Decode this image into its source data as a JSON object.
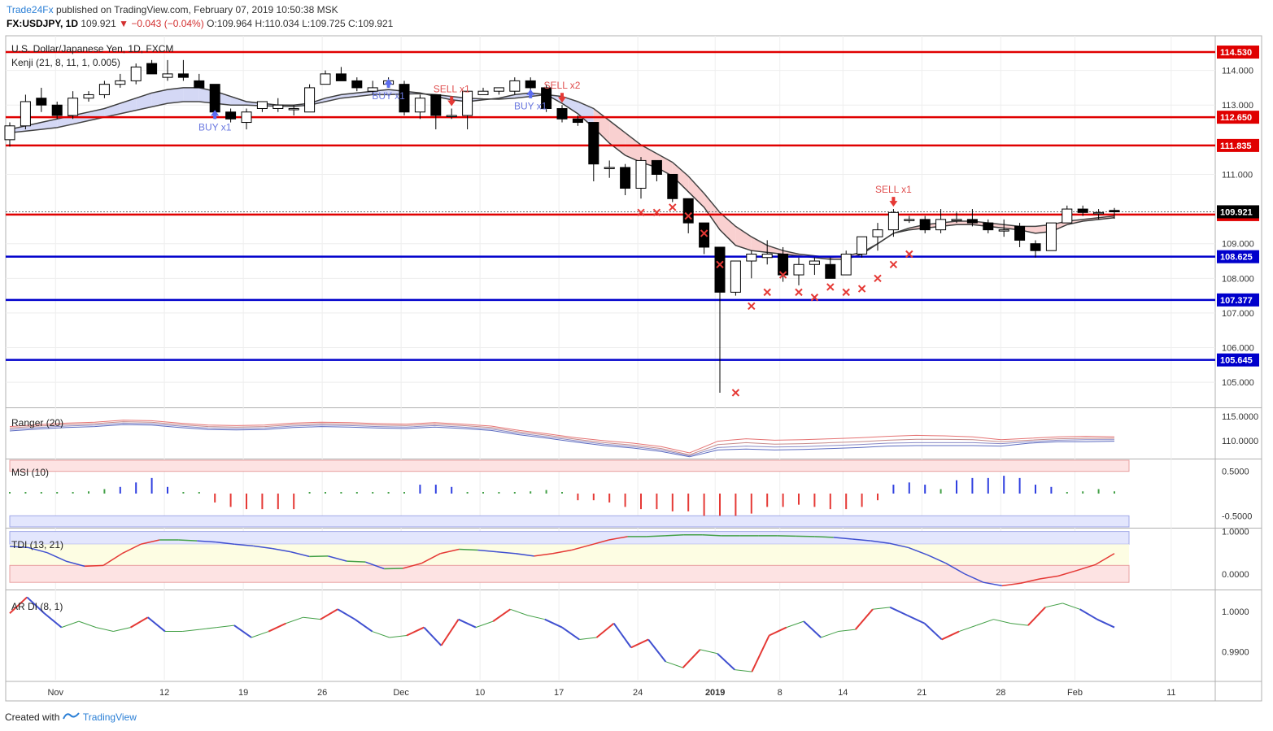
{
  "header": {
    "brand": "Trade24Fx",
    "published": "published on TradingView.com, February 07, 2019 10:50:38 MSK",
    "symbol": "FX:USDJPY, 1D",
    "last": "109.921",
    "change": "▼ −0.043 (−0.04%)",
    "ohlc": "O:109.964 H:110.034 L:109.725 C:109.921"
  },
  "footer": {
    "created_with": "Created with",
    "logo_text": "TradingView"
  },
  "colors": {
    "red_level": "#e00000",
    "blue_level": "#0000cc",
    "bull": "#ffffff",
    "bear": "#000000",
    "kenji_up": "#2e7d32",
    "kenji_dn": "#333333",
    "cloud_up": "#cfe8cf",
    "cloud_dn": "#f9d0d0",
    "cloud_blue": "#d4d8f5"
  },
  "chart_data": [
    {
      "type": "candlestick",
      "title": "U.S. Dollar/Japanese Yen, 1D, FXCM",
      "indicator": "Kenji (21, 8, 11, 1, 0.005)",
      "x_ticks": [
        "Nov",
        "12",
        "19",
        "26",
        "Dec",
        "10",
        "17",
        "24",
        "2019",
        "8",
        "14",
        "21",
        "28",
        "Feb",
        "11"
      ],
      "y_ticks": [
        "114.000",
        "113.000",
        "111.000",
        "109.000",
        "108.000",
        "107.000",
        "106.000",
        "105.000"
      ],
      "ylim": [
        104.3,
        115.0
      ],
      "levels": [
        {
          "value": 114.53,
          "label": "114.530",
          "kind": "resistance"
        },
        {
          "value": 112.65,
          "label": "112.650",
          "kind": "resistance"
        },
        {
          "value": 111.835,
          "label": "111.835",
          "kind": "resistance"
        },
        {
          "value": 109.84,
          "label": "109.840",
          "kind": "resistance"
        },
        {
          "value": 108.625,
          "label": "108.625",
          "kind": "support"
        },
        {
          "value": 107.377,
          "label": "107.377",
          "kind": "support"
        },
        {
          "value": 105.645,
          "label": "105.645",
          "kind": "support"
        }
      ],
      "last_price": {
        "value": 109.921,
        "label": "109.921"
      },
      "candles": [
        [
          112.0,
          112.5,
          111.8,
          112.4
        ],
        [
          112.4,
          113.3,
          112.3,
          113.1
        ],
        [
          113.2,
          113.5,
          112.8,
          113.0
        ],
        [
          113.0,
          113.1,
          112.6,
          112.7
        ],
        [
          112.7,
          113.4,
          112.6,
          113.2
        ],
        [
          113.2,
          113.4,
          113.1,
          113.3
        ],
        [
          113.3,
          113.7,
          113.2,
          113.6
        ],
        [
          113.6,
          113.9,
          113.5,
          113.7
        ],
        [
          113.7,
          114.2,
          113.6,
          114.1
        ],
        [
          114.2,
          114.3,
          113.9,
          113.9
        ],
        [
          113.8,
          114.3,
          113.7,
          113.9
        ],
        [
          113.9,
          114.3,
          113.7,
          113.8
        ],
        [
          113.7,
          113.9,
          113.5,
          113.5
        ],
        [
          113.6,
          113.6,
          112.6,
          112.8
        ],
        [
          112.8,
          112.9,
          112.5,
          112.6
        ],
        [
          112.5,
          112.9,
          112.3,
          112.8
        ],
        [
          112.9,
          113.1,
          112.8,
          113.1
        ],
        [
          112.9,
          113.2,
          112.8,
          113.0
        ],
        [
          112.9,
          113.0,
          112.7,
          112.9
        ],
        [
          112.8,
          113.6,
          112.8,
          113.5
        ],
        [
          113.6,
          114.0,
          113.6,
          113.9
        ],
        [
          113.9,
          114.1,
          113.7,
          113.7
        ],
        [
          113.7,
          113.8,
          113.4,
          113.5
        ],
        [
          113.4,
          113.7,
          113.3,
          113.5
        ],
        [
          113.6,
          113.8,
          113.5,
          113.7
        ],
        [
          113.6,
          113.7,
          112.7,
          112.8
        ],
        [
          112.8,
          113.3,
          112.6,
          113.2
        ],
        [
          113.3,
          113.3,
          112.3,
          112.7
        ],
        [
          112.7,
          112.9,
          112.6,
          112.7
        ],
        [
          112.7,
          113.4,
          112.3,
          113.4
        ],
        [
          113.3,
          113.5,
          113.3,
          113.4
        ],
        [
          113.4,
          113.5,
          113.3,
          113.5
        ],
        [
          113.4,
          113.8,
          113.3,
          113.7
        ],
        [
          113.7,
          113.8,
          113.2,
          113.5
        ],
        [
          113.5,
          113.6,
          112.8,
          112.9
        ],
        [
          112.9,
          113.0,
          112.5,
          112.6
        ],
        [
          112.6,
          112.7,
          112.4,
          112.5
        ],
        [
          112.5,
          112.5,
          110.8,
          111.3
        ],
        [
          111.2,
          111.4,
          110.9,
          111.2
        ],
        [
          111.2,
          111.3,
          110.4,
          110.6
        ],
        [
          110.6,
          111.5,
          110.3,
          111.4
        ],
        [
          111.4,
          111.4,
          110.8,
          111.0
        ],
        [
          111.0,
          111.0,
          110.2,
          110.3
        ],
        [
          110.3,
          110.3,
          109.3,
          109.6
        ],
        [
          109.6,
          109.6,
          108.7,
          108.9
        ],
        [
          108.9,
          108.9,
          104.7,
          107.6
        ],
        [
          107.6,
          108.5,
          107.5,
          108.5
        ],
        [
          108.5,
          108.8,
          108.0,
          108.7
        ],
        [
          108.6,
          109.1,
          108.4,
          108.7
        ],
        [
          108.7,
          108.9,
          107.9,
          108.1
        ],
        [
          108.1,
          108.6,
          107.8,
          108.4
        ],
        [
          108.4,
          108.6,
          108.1,
          108.5
        ],
        [
          108.4,
          108.6,
          108.0,
          108.0
        ],
        [
          108.1,
          108.8,
          108.1,
          108.7
        ],
        [
          108.7,
          109.2,
          108.6,
          109.2
        ],
        [
          109.2,
          109.6,
          108.8,
          109.4
        ],
        [
          109.4,
          110.0,
          109.2,
          109.9
        ],
        [
          109.7,
          109.8,
          109.6,
          109.7
        ],
        [
          109.7,
          109.8,
          109.3,
          109.4
        ],
        [
          109.4,
          110.0,
          109.3,
          109.7
        ],
        [
          109.7,
          109.9,
          109.6,
          109.7
        ],
        [
          109.7,
          110.0,
          109.5,
          109.6
        ],
        [
          109.6,
          109.7,
          109.3,
          109.4
        ],
        [
          109.4,
          109.7,
          109.2,
          109.4
        ],
        [
          109.5,
          109.6,
          108.9,
          109.1
        ],
        [
          109.0,
          109.1,
          108.6,
          108.8
        ],
        [
          108.8,
          109.6,
          108.8,
          109.6
        ],
        [
          109.6,
          110.1,
          109.6,
          110.0
        ],
        [
          110.0,
          110.1,
          109.8,
          109.9
        ],
        [
          109.9,
          110.0,
          109.7,
          109.9
        ],
        [
          109.96,
          110.03,
          109.72,
          109.92
        ]
      ],
      "kenji_fast": [
        112.3,
        112.4,
        112.5,
        112.6,
        112.7,
        112.8,
        112.9,
        113.05,
        113.2,
        113.35,
        113.45,
        113.5,
        113.5,
        113.4,
        113.25,
        113.1,
        113.05,
        113.0,
        113.0,
        113.05,
        113.2,
        113.3,
        113.35,
        113.4,
        113.45,
        113.4,
        113.35,
        113.25,
        113.15,
        113.1,
        113.15,
        113.2,
        113.3,
        113.35,
        113.3,
        113.05,
        112.75,
        112.35,
        111.9,
        111.55,
        111.35,
        111.2,
        110.95,
        110.5,
        110.05,
        109.4,
        108.95,
        108.8,
        108.75,
        108.7,
        108.65,
        108.6,
        108.55,
        108.55,
        108.7,
        109.0,
        109.3,
        109.4,
        109.45,
        109.5,
        109.55,
        109.55,
        109.5,
        109.45,
        109.4,
        109.3,
        109.35,
        109.55,
        109.65,
        109.7,
        109.75
      ],
      "kenji_slow": [
        112.2,
        112.25,
        112.3,
        112.35,
        112.45,
        112.55,
        112.65,
        112.75,
        112.85,
        112.95,
        113.05,
        113.1,
        113.1,
        113.05,
        113.0,
        113.0,
        112.98,
        112.97,
        112.96,
        113.0,
        113.1,
        113.2,
        113.25,
        113.3,
        113.3,
        113.32,
        113.33,
        113.3,
        113.25,
        113.2,
        113.18,
        113.17,
        113.2,
        113.25,
        113.3,
        113.25,
        113.1,
        112.9,
        112.55,
        112.2,
        111.85,
        111.6,
        111.35,
        110.95,
        110.45,
        109.9,
        109.5,
        109.2,
        108.95,
        108.8,
        108.7,
        108.65,
        108.6,
        108.65,
        108.75,
        109.0,
        109.3,
        109.45,
        109.55,
        109.6,
        109.65,
        109.65,
        109.6,
        109.55,
        109.5,
        109.5,
        109.55,
        109.65,
        109.7,
        109.75,
        109.8
      ],
      "signals": [
        {
          "label": "BUY x1",
          "i": 13,
          "side": "buy"
        },
        {
          "label": "BUY x1",
          "i": 24,
          "side": "buy"
        },
        {
          "label": "SELL x1",
          "i": 28,
          "side": "sell"
        },
        {
          "label": "BUY x1",
          "i": 33,
          "side": "buy"
        },
        {
          "label": "SELL x2",
          "i": 35,
          "side": "sell"
        },
        {
          "label": "SELL x1",
          "i": 56,
          "side": "sell"
        }
      ],
      "x_marks": [
        [
          40,
          109.9
        ],
        [
          41,
          109.9
        ],
        [
          42,
          110.05
        ],
        [
          43,
          109.8
        ],
        [
          44,
          109.3
        ],
        [
          45,
          108.4
        ],
        [
          46,
          104.7
        ],
        [
          47,
          107.2
        ],
        [
          48,
          107.6
        ],
        [
          49,
          108.1
        ],
        [
          50,
          107.6
        ],
        [
          51,
          107.45
        ],
        [
          52,
          107.75
        ],
        [
          53,
          107.6
        ],
        [
          54,
          107.7
        ],
        [
          55,
          108.0
        ],
        [
          56,
          108.4
        ],
        [
          57,
          108.7
        ]
      ]
    },
    {
      "type": "line",
      "title": "Ranger (20)",
      "y_ticks": [
        "115.0000",
        "110.0000"
      ],
      "ylim": [
        106.5,
        116.5
      ],
      "series": [
        {
          "values": [
            112.9,
            113.3,
            113.6,
            113.8,
            114.2,
            114.1,
            113.6,
            113.2,
            113.1,
            113.2,
            113.6,
            113.8,
            113.7,
            113.5,
            113.4,
            113.7,
            113.4,
            113.0,
            112.1,
            111.4,
            110.6,
            110.0,
            109.5,
            108.8,
            107.5,
            109.9,
            110.4,
            110.1,
            110.2,
            110.4,
            110.6,
            110.9,
            111.1,
            111.0,
            110.8,
            110.2,
            110.5,
            110.8,
            110.9,
            110.8
          ]
        },
        {
          "values": [
            112.6,
            113.0,
            113.3,
            113.5,
            113.9,
            113.8,
            113.3,
            112.9,
            112.8,
            112.9,
            113.3,
            113.5,
            113.4,
            113.2,
            113.1,
            113.4,
            113.1,
            112.7,
            111.8,
            111.1,
            110.3,
            109.6,
            109.1,
            108.4,
            107.1,
            109.2,
            109.6,
            109.3,
            109.4,
            109.6,
            109.8,
            110.1,
            110.3,
            110.3,
            110.2,
            109.8,
            110.1,
            110.4,
            110.5,
            110.5
          ]
        },
        {
          "values": [
            112.3,
            112.7,
            113.0,
            113.2,
            113.6,
            113.5,
            113.0,
            112.6,
            112.5,
            112.6,
            113.0,
            113.2,
            113.1,
            112.9,
            112.8,
            113.1,
            112.8,
            112.4,
            111.5,
            110.8,
            110.0,
            109.3,
            108.8,
            108.1,
            106.9,
            108.6,
            108.9,
            108.7,
            108.8,
            109.0,
            109.2,
            109.5,
            109.6,
            109.6,
            109.6,
            109.4,
            109.8,
            110.1,
            110.2,
            110.2
          ]
        },
        {
          "values": [
            112.0,
            112.4,
            112.7,
            112.9,
            113.3,
            113.2,
            112.7,
            112.3,
            112.2,
            112.3,
            112.7,
            112.9,
            112.8,
            112.6,
            112.5,
            112.8,
            112.5,
            112.1,
            111.2,
            110.5,
            109.7,
            109.0,
            108.5,
            107.8,
            106.7,
            108.1,
            108.3,
            108.1,
            108.2,
            108.4,
            108.6,
            108.9,
            109.0,
            109.0,
            109.0,
            108.9,
            109.5,
            109.8,
            109.8,
            109.9
          ]
        }
      ]
    },
    {
      "type": "bar",
      "title": "MSI (10)",
      "y_ticks": [
        "0.5000",
        "-0.5000"
      ],
      "ylim": [
        -0.75,
        0.75
      ],
      "values": [
        0.02,
        0.02,
        0.02,
        0.02,
        0.03,
        0.05,
        0.1,
        0.15,
        0.25,
        0.35,
        0.15,
        0,
        0.02,
        -0.2,
        -0.3,
        -0.35,
        -0.35,
        -0.35,
        -0.35,
        0,
        0,
        0,
        0,
        0,
        0,
        0,
        0.2,
        0.2,
        0.15,
        0,
        0,
        0.02,
        0.02,
        0.05,
        0.08,
        0.02,
        -0.15,
        -0.15,
        -0.2,
        -0.3,
        -0.35,
        -0.35,
        -0.4,
        -0.4,
        -0.5,
        -0.5,
        -0.5,
        -0.45,
        -0.3,
        -0.3,
        -0.25,
        -0.3,
        -0.35,
        -0.35,
        -0.3,
        -0.15,
        0.2,
        0.25,
        0.2,
        0.1,
        0.3,
        0.35,
        0.35,
        0.4,
        0.35,
        0.2,
        0.15,
        0.02,
        0.05,
        0.1,
        0.05
      ]
    },
    {
      "type": "line",
      "title": "TDI (13, 21)",
      "y_ticks": [
        "1.0000",
        "0.0000"
      ],
      "ylim": [
        -0.35,
        1.05
      ],
      "values": [
        0.65,
        0.62,
        0.5,
        0.3,
        0.18,
        0.2,
        0.48,
        0.7,
        0.8,
        0.8,
        0.78,
        0.75,
        0.7,
        0.66,
        0.6,
        0.52,
        0.41,
        0.42,
        0.3,
        0.28,
        0.12,
        0.13,
        0.25,
        0.48,
        0.58,
        0.56,
        0.52,
        0.48,
        0.42,
        0.48,
        0.56,
        0.68,
        0.8,
        0.88,
        0.88,
        0.9,
        0.92,
        0.92,
        0.9,
        0.9,
        0.9,
        0.9,
        0.89,
        0.88,
        0.86,
        0.82,
        0.78,
        0.72,
        0.62,
        0.45,
        0.25,
        0.0,
        -0.2,
        -0.28,
        -0.22,
        -0.12,
        -0.05,
        0.08,
        0.22,
        0.48
      ]
    },
    {
      "type": "line",
      "title": "AR DI (8, 1)",
      "y_ticks": [
        "1.0000",
        "0.9900"
      ],
      "ylim": [
        0.983,
        1.005
      ],
      "values": [
        0.9995,
        1.0035,
        0.9995,
        0.996,
        0.9975,
        0.996,
        0.995,
        0.996,
        0.9985,
        0.995,
        0.995,
        0.9955,
        0.996,
        0.9965,
        0.9935,
        0.995,
        0.997,
        0.9985,
        0.998,
        1.0005,
        0.998,
        0.995,
        0.9935,
        0.994,
        0.996,
        0.9915,
        0.998,
        0.996,
        0.9975,
        1.0005,
        0.999,
        0.998,
        0.996,
        0.993,
        0.9935,
        0.997,
        0.991,
        0.993,
        0.9875,
        0.986,
        0.9905,
        0.9895,
        0.9855,
        0.985,
        0.994,
        0.996,
        0.9975,
        0.9935,
        0.995,
        0.9955,
        1.0005,
        1.001,
        0.999,
        0.997,
        0.993,
        0.995,
        0.9965,
        0.998,
        0.997,
        0.9965,
        1.001,
        1.002,
        1.0005,
        0.998,
        0.996
      ]
    }
  ]
}
